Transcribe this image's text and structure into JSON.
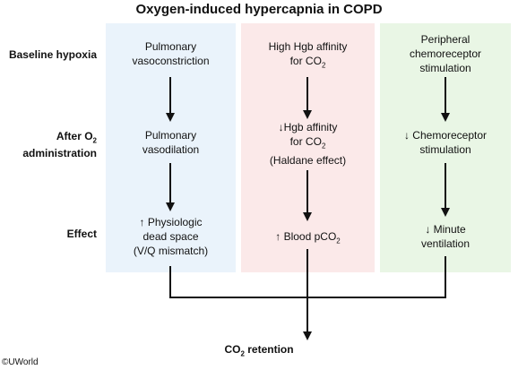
{
  "title": "Oxygen-induced hypercapnia in COPD",
  "row_labels": {
    "baseline": "Baseline hypoxia",
    "after_line1": "After O",
    "after_sub": "2",
    "after_line2": "administration",
    "effect": "Effect"
  },
  "columns": [
    {
      "baseline": [
        "Pulmonary",
        "vasoconstriction"
      ],
      "after": [
        "Pulmonary",
        "vasodilation"
      ],
      "effect": [
        "↑ Physiologic",
        "dead space",
        "(V/Q mismatch)"
      ]
    },
    {
      "baseline_l1": "High Hgb affinity",
      "baseline_l2": "for CO",
      "after_l1": "↓Hgb affinity",
      "after_l2": "for CO",
      "after_l3": "(Haldane effect)",
      "effect": "↑ Blood pCO",
      "sub": "2"
    },
    {
      "baseline": [
        "Peripheral",
        "chemoreceptor",
        "stimulation"
      ],
      "after": [
        "↓ Chemoreceptor",
        "stimulation"
      ],
      "effect": [
        "↓ Minute",
        "ventilation"
      ]
    }
  ],
  "outcome": "CO",
  "outcome_sub": "2",
  "outcome_rest": " retention",
  "copyright": "©UWorld",
  "colors": {
    "blue_panel": "#eaf3fb",
    "pink_panel": "#fbe9e9",
    "green_panel": "#e9f6e5",
    "arrow": "#111111"
  }
}
